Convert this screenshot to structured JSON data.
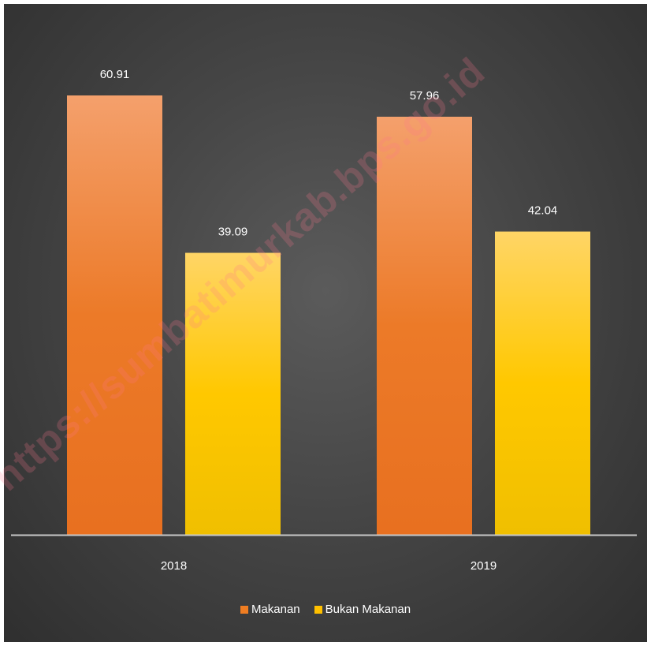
{
  "chart_data": {
    "type": "bar",
    "categories": [
      "2018",
      "2019"
    ],
    "series": [
      {
        "name": "Makanan",
        "values": [
          60.91,
          57.96
        ],
        "color": "#ef7d22"
      },
      {
        "name": "Bukan Makanan",
        "values": [
          39.09,
          42.04
        ],
        "color": "#ffc000"
      }
    ],
    "data_labels": [
      [
        "60.91",
        "57.96"
      ],
      [
        "39.09",
        "42.04"
      ]
    ],
    "ylim": [
      0,
      70
    ],
    "grid": false,
    "legend_position": "bottom",
    "background": "#464646"
  },
  "watermark": "https://sumbatimurkab.bps.go.id"
}
